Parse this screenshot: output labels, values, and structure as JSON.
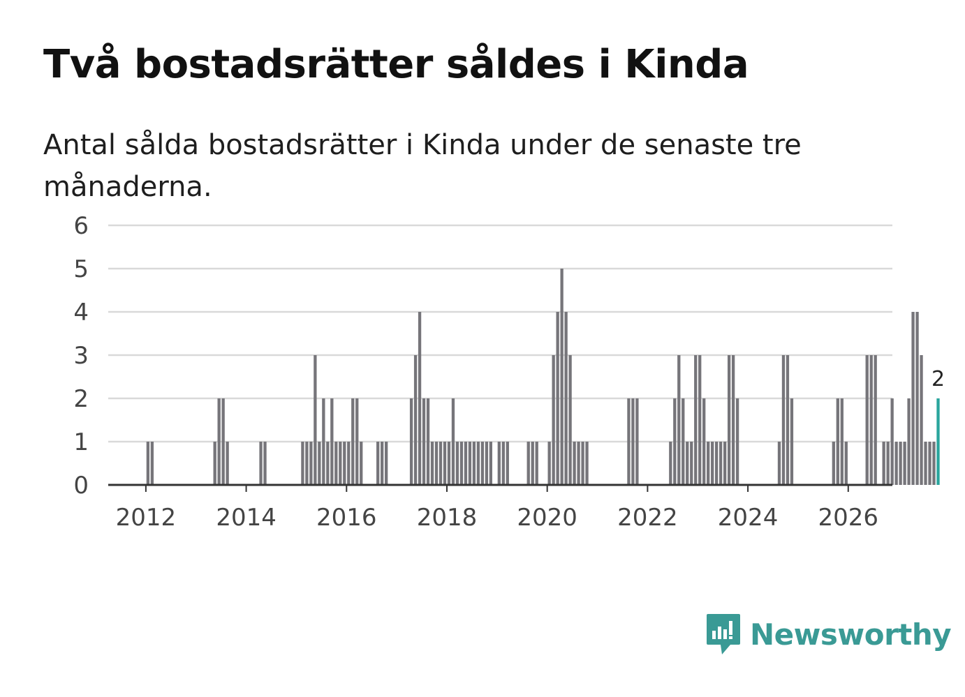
{
  "title": "Två bostadsrätter såldes i Kinda",
  "subtitle": "Antal sålda bostadsrätter i Kinda under de senaste tre månaderna.",
  "brand": {
    "name": "Newsworthy",
    "icon": "newsworthy-logo-icon"
  },
  "colors": {
    "bar": "#76757a",
    "highlight": "#2aa59d",
    "grid": "#d9d9d9",
    "axis": "#333333",
    "brand": "#3a9a95"
  },
  "chart_data": {
    "type": "bar",
    "title": "Två bostadsrätter såldes i Kinda",
    "xlabel": "",
    "ylabel": "",
    "ylim": [
      0,
      6
    ],
    "yticks": [
      "0",
      "1",
      "2",
      "3",
      "4",
      "5",
      "6"
    ],
    "xticks": [
      "2012",
      "2014",
      "2016",
      "2018",
      "2020",
      "2022",
      "2024",
      "2026"
    ],
    "start": "2011-01",
    "grid": true,
    "highlight_label": "2",
    "values": [
      0,
      0,
      0,
      0,
      0,
      0,
      0,
      0,
      0,
      0,
      0,
      0,
      1,
      1,
      0,
      0,
      0,
      0,
      0,
      0,
      0,
      0,
      0,
      0,
      0,
      0,
      0,
      0,
      1,
      2,
      2,
      1,
      0,
      0,
      0,
      0,
      0,
      0,
      0,
      1,
      1,
      0,
      0,
      0,
      0,
      0,
      0,
      0,
      0,
      1,
      1,
      1,
      3,
      1,
      2,
      1,
      2,
      1,
      1,
      1,
      1,
      2,
      2,
      1,
      0,
      0,
      0,
      1,
      1,
      1,
      0,
      0,
      0,
      0,
      0,
      2,
      3,
      4,
      2,
      2,
      1,
      1,
      1,
      1,
      1,
      2,
      1,
      1,
      1,
      1,
      1,
      1,
      1,
      1,
      1,
      0,
      1,
      1,
      1,
      0,
      0,
      0,
      0,
      1,
      1,
      1,
      0,
      0,
      1,
      3,
      4,
      5,
      4,
      3,
      1,
      1,
      1,
      1,
      0,
      0,
      0,
      0,
      0,
      0,
      0,
      0,
      0,
      2,
      2,
      2,
      0,
      0,
      0,
      0,
      0,
      0,
      0,
      1,
      2,
      3,
      2,
      1,
      1,
      3,
      3,
      2,
      1,
      1,
      1,
      1,
      1,
      3,
      3,
      2,
      0,
      0,
      0,
      0,
      0,
      0,
      0,
      0,
      0,
      1,
      3,
      3,
      2,
      0,
      0,
      0,
      0,
      0,
      0,
      0,
      0,
      0,
      1,
      2,
      2,
      1,
      0,
      0,
      0,
      0,
      3,
      3,
      3,
      0,
      1,
      1,
      2,
      1,
      1,
      1,
      2,
      4,
      4,
      3,
      1,
      1,
      1,
      2
    ]
  }
}
